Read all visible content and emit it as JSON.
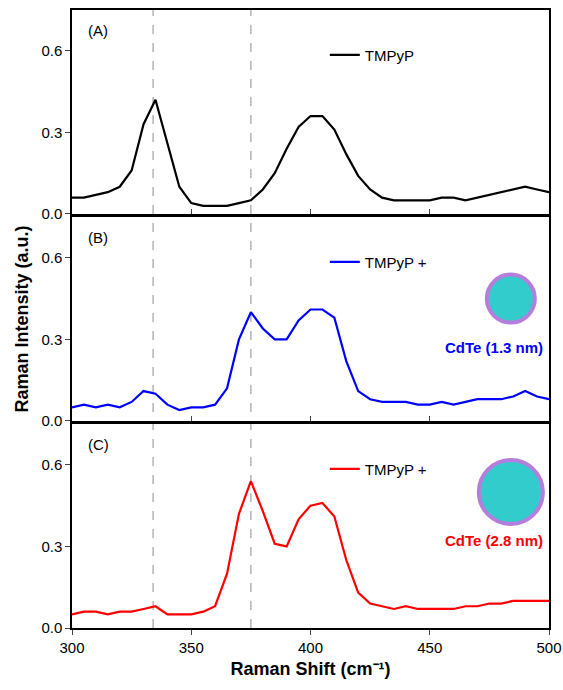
{
  "chart_data": {
    "type": "line",
    "x_label": "Raman Shift (cm⁻¹)",
    "y_label": "Raman Intensity (a.u.)",
    "xlim": [
      300,
      500
    ],
    "xticks": [
      300,
      350,
      400,
      450,
      500
    ],
    "ylim": [
      0,
      0.75
    ],
    "yticks": [
      {
        "value": 0,
        "label": "0.0"
      },
      0.3,
      0.6
    ],
    "grid": false,
    "reference_lines": [
      334,
      375
    ],
    "x": [
      300,
      305,
      310,
      315,
      320,
      325,
      330,
      335,
      340,
      345,
      350,
      355,
      360,
      365,
      370,
      375,
      380,
      385,
      390,
      395,
      400,
      405,
      410,
      415,
      420,
      425,
      430,
      435,
      440,
      445,
      450,
      455,
      460,
      465,
      470,
      475,
      480,
      485,
      490,
      495,
      500
    ],
    "panels": [
      {
        "label": "(A)",
        "series": [
          {
            "name": "TMPyP",
            "color": "#000000",
            "values": [
              0.06,
              0.06,
              0.07,
              0.08,
              0.1,
              0.16,
              0.33,
              0.42,
              0.26,
              0.1,
              0.04,
              0.03,
              0.03,
              0.03,
              0.04,
              0.05,
              0.09,
              0.15,
              0.24,
              0.32,
              0.36,
              0.36,
              0.31,
              0.22,
              0.14,
              0.09,
              0.06,
              0.05,
              0.05,
              0.05,
              0.05,
              0.06,
              0.06,
              0.05,
              0.06,
              0.07,
              0.08,
              0.09,
              0.1,
              0.09,
              0.08
            ]
          }
        ]
      },
      {
        "label": "(B)",
        "annotation": "CdTe (1.3 nm)",
        "series": [
          {
            "name": "TMPyP +",
            "color": "#0000ff",
            "values": [
              0.05,
              0.06,
              0.05,
              0.06,
              0.05,
              0.07,
              0.11,
              0.1,
              0.06,
              0.04,
              0.05,
              0.05,
              0.06,
              0.12,
              0.3,
              0.4,
              0.34,
              0.3,
              0.3,
              0.37,
              0.41,
              0.41,
              0.38,
              0.22,
              0.11,
              0.08,
              0.07,
              0.07,
              0.07,
              0.06,
              0.06,
              0.07,
              0.06,
              0.07,
              0.08,
              0.08,
              0.08,
              0.09,
              0.11,
              0.09,
              0.08
            ]
          }
        ]
      },
      {
        "label": "(C)",
        "annotation": "CdTe (2.8 nm)",
        "series": [
          {
            "name": "TMPyP +",
            "color": "#ff0000",
            "values": [
              0.05,
              0.06,
              0.06,
              0.05,
              0.06,
              0.06,
              0.07,
              0.08,
              0.05,
              0.05,
              0.05,
              0.06,
              0.08,
              0.2,
              0.42,
              0.54,
              0.43,
              0.31,
              0.3,
              0.4,
              0.45,
              0.46,
              0.41,
              0.25,
              0.13,
              0.09,
              0.08,
              0.07,
              0.08,
              0.07,
              0.07,
              0.07,
              0.07,
              0.08,
              0.08,
              0.09,
              0.09,
              0.1,
              0.1,
              0.1,
              0.1
            ]
          }
        ]
      }
    ]
  }
}
